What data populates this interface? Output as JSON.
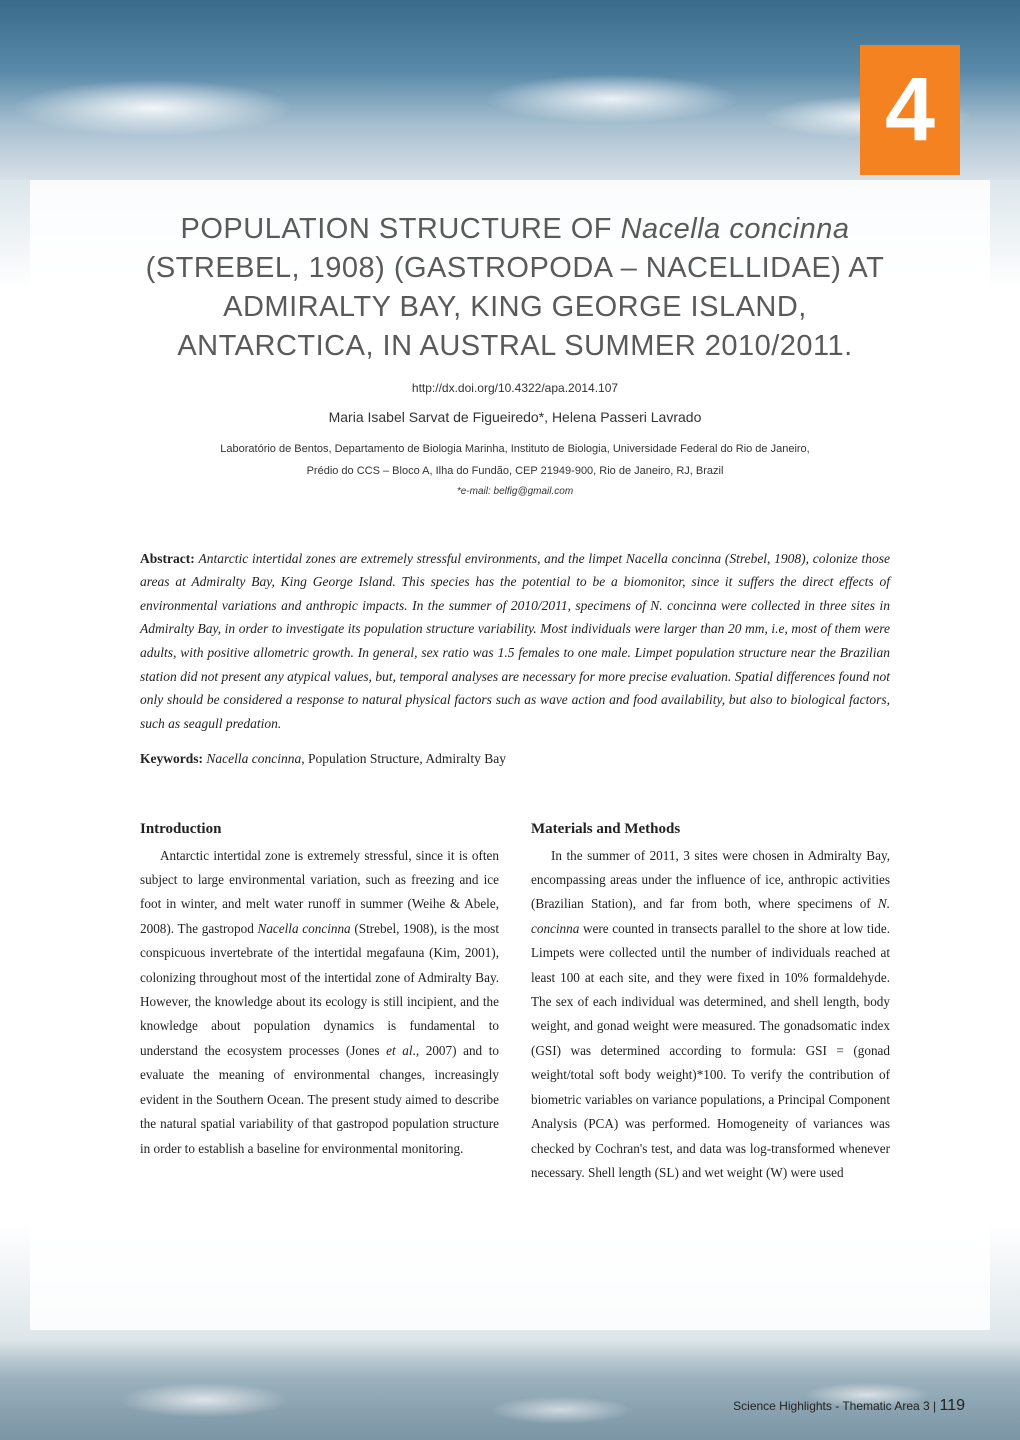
{
  "chapter_number": "4",
  "title_line1": "POPULATION STRUCTURE OF ",
  "title_species": "Nacella concinna",
  "title_line2": " (STREBEL, 1908) (GASTROPODA – NACELLIDAE) AT ADMIRALTY BAY, KING GEORGE ISLAND, ANTARCTICA, IN AUSTRAL SUMMER 2010/2011.",
  "doi": "http://dx.doi.org/10.4322/apa.2014.107",
  "authors": "Maria Isabel Sarvat de Figueiredo*, Helena Passeri Lavrado",
  "affiliation_line1": "Laboratório de Bentos, Departamento de Biologia Marinha, Instituto de Biologia, Universidade Federal do Rio de Janeiro,",
  "affiliation_line2": "Prédio do CCS – Bloco A, Ilha do Fundão, CEP 21949-900, Rio de Janeiro, RJ, Brazil",
  "email_label": "*e-mail: ",
  "email": "belfig@gmail.com",
  "abstract_label": "Abstract: ",
  "abstract_text": "Antarctic intertidal zones are extremely stressful environments, and the limpet Nacella concinna (Strebel, 1908), colonize those areas at Admiralty Bay, King George Island. This species has the potential to be a biomonitor, since it suffers the direct effects of environmental variations and anthropic impacts. In the summer of 2010/2011, specimens of N. concinna were collected in three sites in Admiralty Bay, in order to investigate its population structure variability. Most individuals were larger than 20 mm, i.e, most of them were adults, with positive allometric growth. In general, sex ratio was 1.5 females to one male. Limpet population structure near the Brazilian station did not present any atypical values, but, temporal analyses are necessary for more precise evaluation. Spatial differences found not only should be considered a response to natural physical factors such as wave action and food availability, but also to biological factors, such as seagull predation.",
  "keywords_label": "Keywords: ",
  "keywords_species": "Nacella concinna",
  "keywords_rest": ", Population Structure, Admiralty Bay",
  "intro_head": "Introduction",
  "intro_p1a": "Antarctic intertidal zone is extremely stressful, since it is often subject to large environmental variation, such as freezing and ice foot in winter, and melt water runoff in summer (Weihe & Abele, 2008). The gastropod ",
  "intro_species": "Nacella concinna",
  "intro_p1b": " (Strebel, 1908), is the most conspicuous invertebrate of the intertidal megafauna (Kim, 2001), colonizing throughout most of the intertidal zone of Admiralty Bay. However, the knowledge about its ecology is still incipient, and the knowledge about population dynamics is fundamental to understand the ecosystem processes (Jones ",
  "intro_etal": "et al",
  "intro_p1c": "., 2007) and to evaluate the meaning of environmental changes, increasingly evident in the Southern Ocean. The present study aimed to describe the natural spatial variability of that gastropod population structure in order to establish a baseline for environmental monitoring.",
  "methods_head": "Materials and Methods",
  "methods_p1a": "In the summer of 2011, 3 sites were chosen in Admiralty Bay, encompassing areas under the influence of ice, anthropic activities (Brazilian Station), and far from both, where specimens of ",
  "methods_species": "N. concinna",
  "methods_p1b": " were counted in transects parallel to the shore at low tide. Limpets were collected until the number of individuals reached at least 100 at each site, and they were fixed in 10% formaldehyde. The sex of each individual was determined, and shell length, body weight, and gonad weight were measured. The gonadsomatic index (GSI) was determined according to formula: GSI = (gonad weight/total soft body weight)*100. To verify the contribution of biometric variables on variance populations, a Principal Component Analysis (PCA) was performed. Homogeneity of variances was checked by Cochran's test, and data was log-transformed whenever necessary. Shell length (SL) and wet weight (W) were used",
  "footer_text": "Science Highlights - Thematic Area 3  |  ",
  "page_number": "119",
  "colors": {
    "chapter_bg": "#f58220",
    "title_color": "#5a5a5a",
    "body_color": "#222222"
  }
}
